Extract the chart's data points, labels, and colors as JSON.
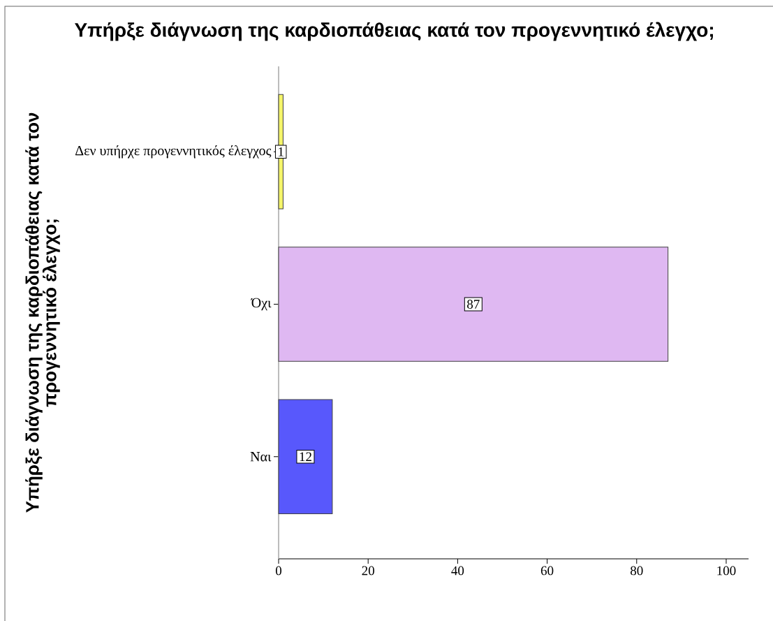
{
  "chart_data": {
    "type": "bar",
    "orientation": "horizontal",
    "title": "Υπήρξε διάγνωση της καρδιοπάθειας κατά τον προγεννητικό έλεγχο;",
    "ylabel": "Υπήρξε διάγνωση της καρδιοπάθειας κατά τον προγεννητικό έλεγχο;",
    "categories": [
      "Δεν υπήρχε προγεννητικός έλεγχος",
      "Όχι",
      "Ναι"
    ],
    "values": [
      1,
      87,
      12
    ],
    "colors": [
      "#f5f56a",
      "#dfb8f2",
      "#5858fc"
    ],
    "xlim": [
      0,
      105
    ],
    "xticks": [
      0,
      20,
      40,
      60,
      80,
      100
    ],
    "data_labels": true
  }
}
